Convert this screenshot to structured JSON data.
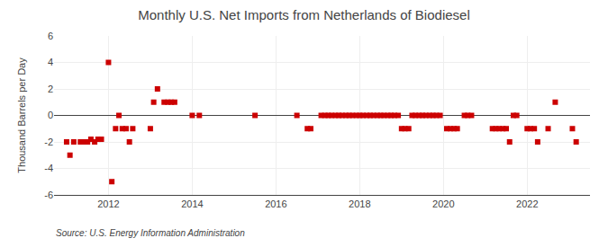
{
  "chart_data": {
    "type": "scatter",
    "title": "Monthly U.S. Net Imports from Netherlands of Biodiesel",
    "y_label": "Thousand Barrels per Day",
    "annotations": [
      "Source: U.S. Energy Information Administration"
    ],
    "color": "#cc0000",
    "marker": "square",
    "grid": true,
    "xlim": [
      2010.7,
      2023.5
    ],
    "xticks": [
      2012,
      2014,
      2016,
      2018,
      2020,
      2022
    ],
    "ylim": [
      -6,
      6
    ],
    "yticks": [
      -6,
      -4,
      -2,
      0,
      2,
      4,
      6
    ],
    "x": [
      2011.0,
      2011.08,
      2011.17,
      2011.33,
      2011.42,
      2011.5,
      2011.58,
      2011.67,
      2011.75,
      2011.83,
      2012.0,
      2012.08,
      2012.17,
      2012.25,
      2012.33,
      2012.42,
      2012.5,
      2012.58,
      2013.0,
      2013.08,
      2013.17,
      2013.33,
      2013.42,
      2013.5,
      2013.58,
      2014.0,
      2014.17,
      2015.5,
      2016.5,
      2016.75,
      2016.83,
      2017.08,
      2017.17,
      2017.25,
      2017.33,
      2017.42,
      2017.5,
      2017.58,
      2017.67,
      2017.75,
      2017.83,
      2017.92,
      2018.0,
      2018.08,
      2018.17,
      2018.25,
      2018.33,
      2018.42,
      2018.5,
      2018.58,
      2018.67,
      2018.75,
      2018.83,
      2018.92,
      2019.0,
      2019.08,
      2019.17,
      2019.25,
      2019.33,
      2019.42,
      2019.5,
      2019.58,
      2019.67,
      2019.75,
      2019.83,
      2019.92,
      2020.08,
      2020.17,
      2020.25,
      2020.33,
      2020.5,
      2020.58,
      2020.67,
      2021.17,
      2021.25,
      2021.33,
      2021.42,
      2021.5,
      2021.58,
      2021.67,
      2021.75,
      2022.0,
      2022.08,
      2022.17,
      2022.25,
      2022.5,
      2022.67,
      2023.08,
      2023.17
    ],
    "values": [
      -2.0,
      -3.0,
      -2.0,
      -2.0,
      -2.0,
      -2.0,
      -1.8,
      -2.0,
      -1.8,
      -1.8,
      4.0,
      -5.0,
      -1.0,
      0.0,
      -1.0,
      -1.0,
      -2.0,
      -1.0,
      -1.0,
      1.0,
      2.0,
      1.0,
      1.0,
      1.0,
      1.0,
      0.0,
      0.0,
      0.0,
      0.0,
      -1.0,
      -1.0,
      0.0,
      0.0,
      0.0,
      0.0,
      0.0,
      0.0,
      0.0,
      0.0,
      0.0,
      0.0,
      0.0,
      0.0,
      0.0,
      0.0,
      0.0,
      0.0,
      0.0,
      0.0,
      0.0,
      0.0,
      0.0,
      0.0,
      0.0,
      -1.0,
      -1.0,
      -1.0,
      0.0,
      0.0,
      0.0,
      0.0,
      0.0,
      0.0,
      0.0,
      0.0,
      0.0,
      -1.0,
      -1.0,
      -1.0,
      -1.0,
      0.0,
      0.0,
      0.0,
      -1.0,
      -1.0,
      -1.0,
      -1.0,
      -1.0,
      -2.0,
      0.0,
      0.0,
      -1.0,
      -1.0,
      -1.0,
      -2.0,
      -1.0,
      1.0,
      -1.0,
      -2.0
    ]
  }
}
